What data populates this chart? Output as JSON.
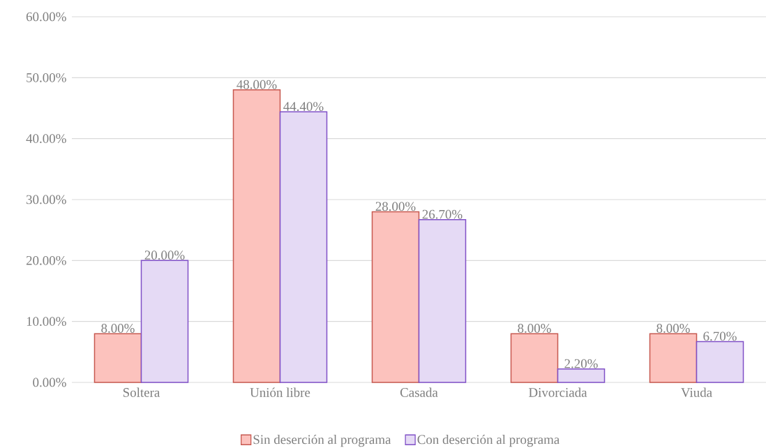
{
  "chart_data": {
    "type": "bar",
    "categories": [
      "Soltera",
      "Unión libre",
      "Casada",
      "Divorciada",
      "Viuda"
    ],
    "series": [
      {
        "name": "Sin deserción al programa",
        "color": "#fcc2bd",
        "values": [
          8,
          48,
          28,
          8,
          8
        ],
        "value_labels": [
          "8.00%",
          "48.00%",
          "28.00%",
          "8.00%",
          "8.00%"
        ]
      },
      {
        "name": "Con deserción al programa",
        "color": "#e5daf5",
        "values": [
          20,
          44.4,
          26.7,
          2.2,
          6.7
        ],
        "value_labels": [
          "20.00%",
          "44.40%",
          "26.70%",
          "2.20%",
          "6.70%"
        ]
      }
    ],
    "ylim": [
      0,
      60
    ],
    "yticks": [
      {
        "value": 0,
        "label": "0.00%"
      },
      {
        "value": 10,
        "label": "10.00%"
      },
      {
        "value": 20,
        "label": "20.00%"
      },
      {
        "value": 30,
        "label": "30.00%"
      },
      {
        "value": 40,
        "label": "40.00%"
      },
      {
        "value": 50,
        "label": "50.00%"
      },
      {
        "value": 60,
        "label": "60.00%"
      }
    ],
    "grid": "y",
    "legend": "bottom"
  }
}
